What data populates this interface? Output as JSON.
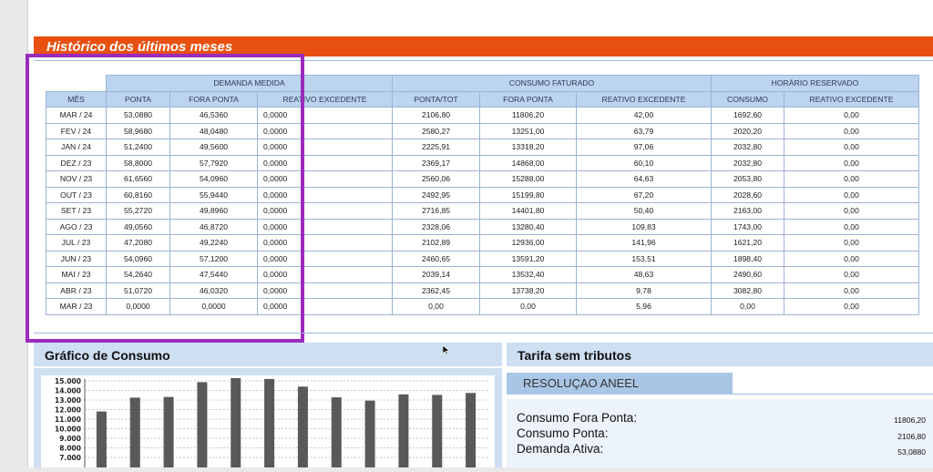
{
  "history": {
    "title": "Histórico dos últimos meses",
    "group_headers": [
      "DEMANDA MEDIDA",
      "CONSUMO FATURADO",
      "HORÁRIO RESERVADO"
    ],
    "columns": [
      "MÊS",
      "PONTA",
      "FORA PONTA",
      "REATIVO EXCEDENTE",
      "PONTA/TOT",
      "FORA PONTA",
      "REATIVO EXCEDENTE",
      "CONSUMO",
      "REATIVO EXCEDENTE"
    ],
    "rows": [
      [
        "MAR / 24",
        "53,0880",
        "46,5360",
        "0,0000",
        "2106,80",
        "11806,20",
        "42,00",
        "1692,60",
        "0,00"
      ],
      [
        "FEV / 24",
        "58,9680",
        "48,0480",
        "0,0000",
        "2580,27",
        "13251,00",
        "63,79",
        "2020,20",
        "0,00"
      ],
      [
        "JAN / 24",
        "51,2400",
        "49,5600",
        "0,0000",
        "2225,91",
        "13318,20",
        "97,06",
        "2032,80",
        "0,00"
      ],
      [
        "DEZ / 23",
        "58,8000",
        "57,7920",
        "0,0000",
        "2369,17",
        "14868,00",
        "60,10",
        "2032,80",
        "0,00"
      ],
      [
        "NOV / 23",
        "61,6560",
        "54,0960",
        "0,0000",
        "2560,06",
        "15288,00",
        "64,63",
        "2053,80",
        "0,00"
      ],
      [
        "OUT / 23",
        "60,8160",
        "55,9440",
        "0,0000",
        "2492,95",
        "15199,80",
        "67,20",
        "2028,60",
        "0,00"
      ],
      [
        "SET / 23",
        "55,2720",
        "49,8960",
        "0,0000",
        "2716,85",
        "14401,80",
        "50,40",
        "2163,00",
        "0,00"
      ],
      [
        "AGO / 23",
        "49,0560",
        "46,8720",
        "0,0000",
        "2328,06",
        "13280,40",
        "109,83",
        "1743,00",
        "0,00"
      ],
      [
        "JUL / 23",
        "47,2080",
        "49,2240",
        "0,0000",
        "2102,89",
        "12936,00",
        "141,96",
        "1621,20",
        "0,00"
      ],
      [
        "JUN / 23",
        "54,0960",
        "57,1200",
        "0,0000",
        "2460,65",
        "13591,20",
        "153,51",
        "1898,40",
        "0,00"
      ],
      [
        "MAI / 23",
        "54,2640",
        "47,5440",
        "0,0000",
        "2039,14",
        "13532,40",
        "48,63",
        "2490,60",
        "0,00"
      ],
      [
        "ABR / 23",
        "51,0720",
        "46,0320",
        "0,0000",
        "2362,45",
        "13738,20",
        "9,78",
        "3082,80",
        "0,00"
      ],
      [
        "MAR / 23",
        "0,0000",
        "0,0000",
        "0,0000",
        "0,00",
        "0,00",
        "5,96",
        "0,00",
        "0,00"
      ]
    ]
  },
  "consumption_chart": {
    "title": "Gráfico de Consumo",
    "chart_data": {
      "type": "bar",
      "series": [
        {
          "values": [
            11806.2,
            13251.0,
            13318.2,
            14868.0,
            15288.0,
            15199.8,
            14401.8,
            13280.4,
            12936.0,
            13591.2,
            13532.4,
            13738.2
          ]
        }
      ],
      "y_ticks": [
        "15.000",
        "14.000",
        "13.000",
        "12.000",
        "11.000",
        "10.000",
        "9.000",
        "8.000",
        "7.000"
      ],
      "ylim": [
        7000,
        15000
      ],
      "grid": true,
      "bar_color": "#595959"
    }
  },
  "tarifa": {
    "title": "Tarifa sem tributos",
    "resolution_label": "RESOLUÇAO ANEEL",
    "items": [
      {
        "label": "Consumo Fora Ponta:",
        "value": "11806,20"
      },
      {
        "label": "Consumo Ponta:",
        "value": "2106,80"
      },
      {
        "label": "Demanda Ativa:",
        "value": "53,0880"
      }
    ]
  },
  "colors": {
    "banner": "#e8500f",
    "header_fill": "#bcd4ee",
    "highlight": "#9b2bbd"
  }
}
